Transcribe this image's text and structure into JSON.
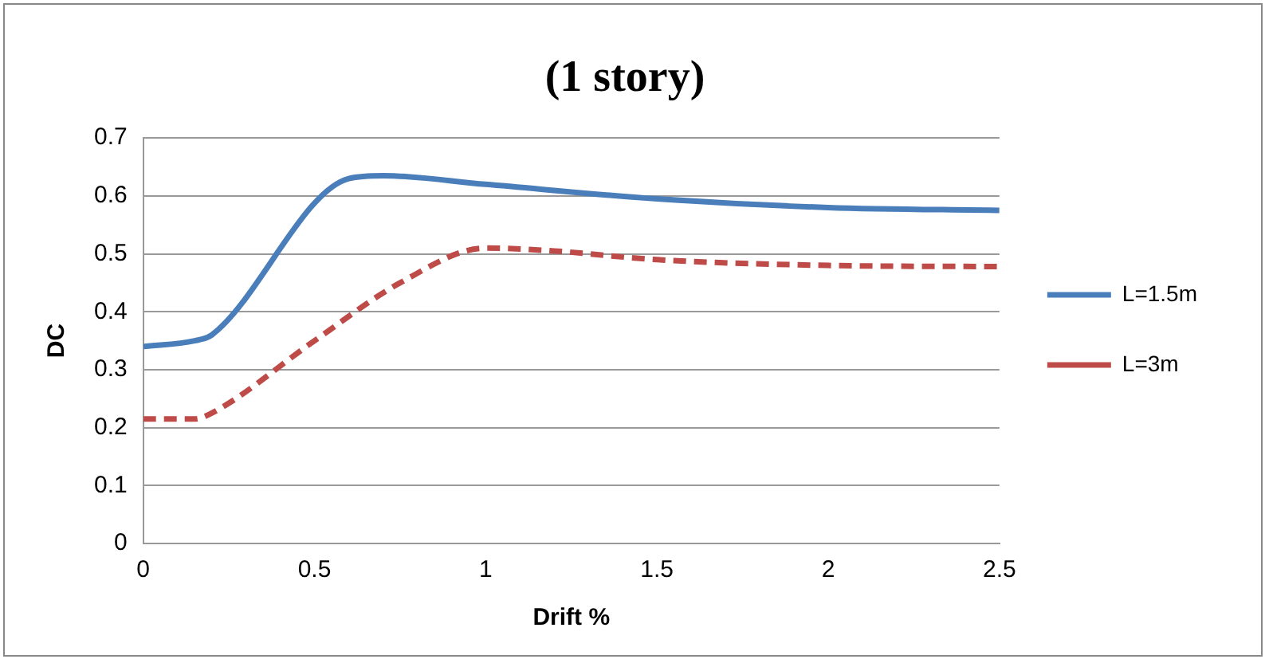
{
  "chart_data": {
    "type": "line",
    "title": "(1 story)",
    "xlabel": "Drift %",
    "ylabel": "DC",
    "xlim": [
      0,
      2.5
    ],
    "xticks": [
      0,
      0.5,
      1,
      1.5,
      2,
      2.5
    ],
    "ylim": [
      0,
      0.7
    ],
    "yticks": [
      0,
      0.1,
      0.2,
      0.3,
      0.4,
      0.5,
      0.6,
      0.7
    ],
    "grid": "y",
    "legend": "right",
    "marker": "none",
    "series": [
      {
        "name": "L=1.5m",
        "color": "#4a7ebb",
        "line_style": "solid",
        "x": [
          0,
          0.15,
          0.2,
          0.6,
          0.7,
          1,
          1.5,
          2,
          2.5
        ],
        "values": [
          0.34,
          0.35,
          0.36,
          0.63,
          0.635,
          0.62,
          0.595,
          0.58,
          0.575
        ]
      },
      {
        "name": "L=3m",
        "color": "#be4b48",
        "line_style": "dashed",
        "x": [
          0,
          0.15,
          0.2,
          0.5,
          0.75,
          1,
          1.2,
          1.5,
          2,
          2.5
        ],
        "values": [
          0.215,
          0.215,
          0.225,
          0.35,
          0.45,
          0.51,
          0.505,
          0.49,
          0.48,
          0.478
        ]
      }
    ]
  }
}
